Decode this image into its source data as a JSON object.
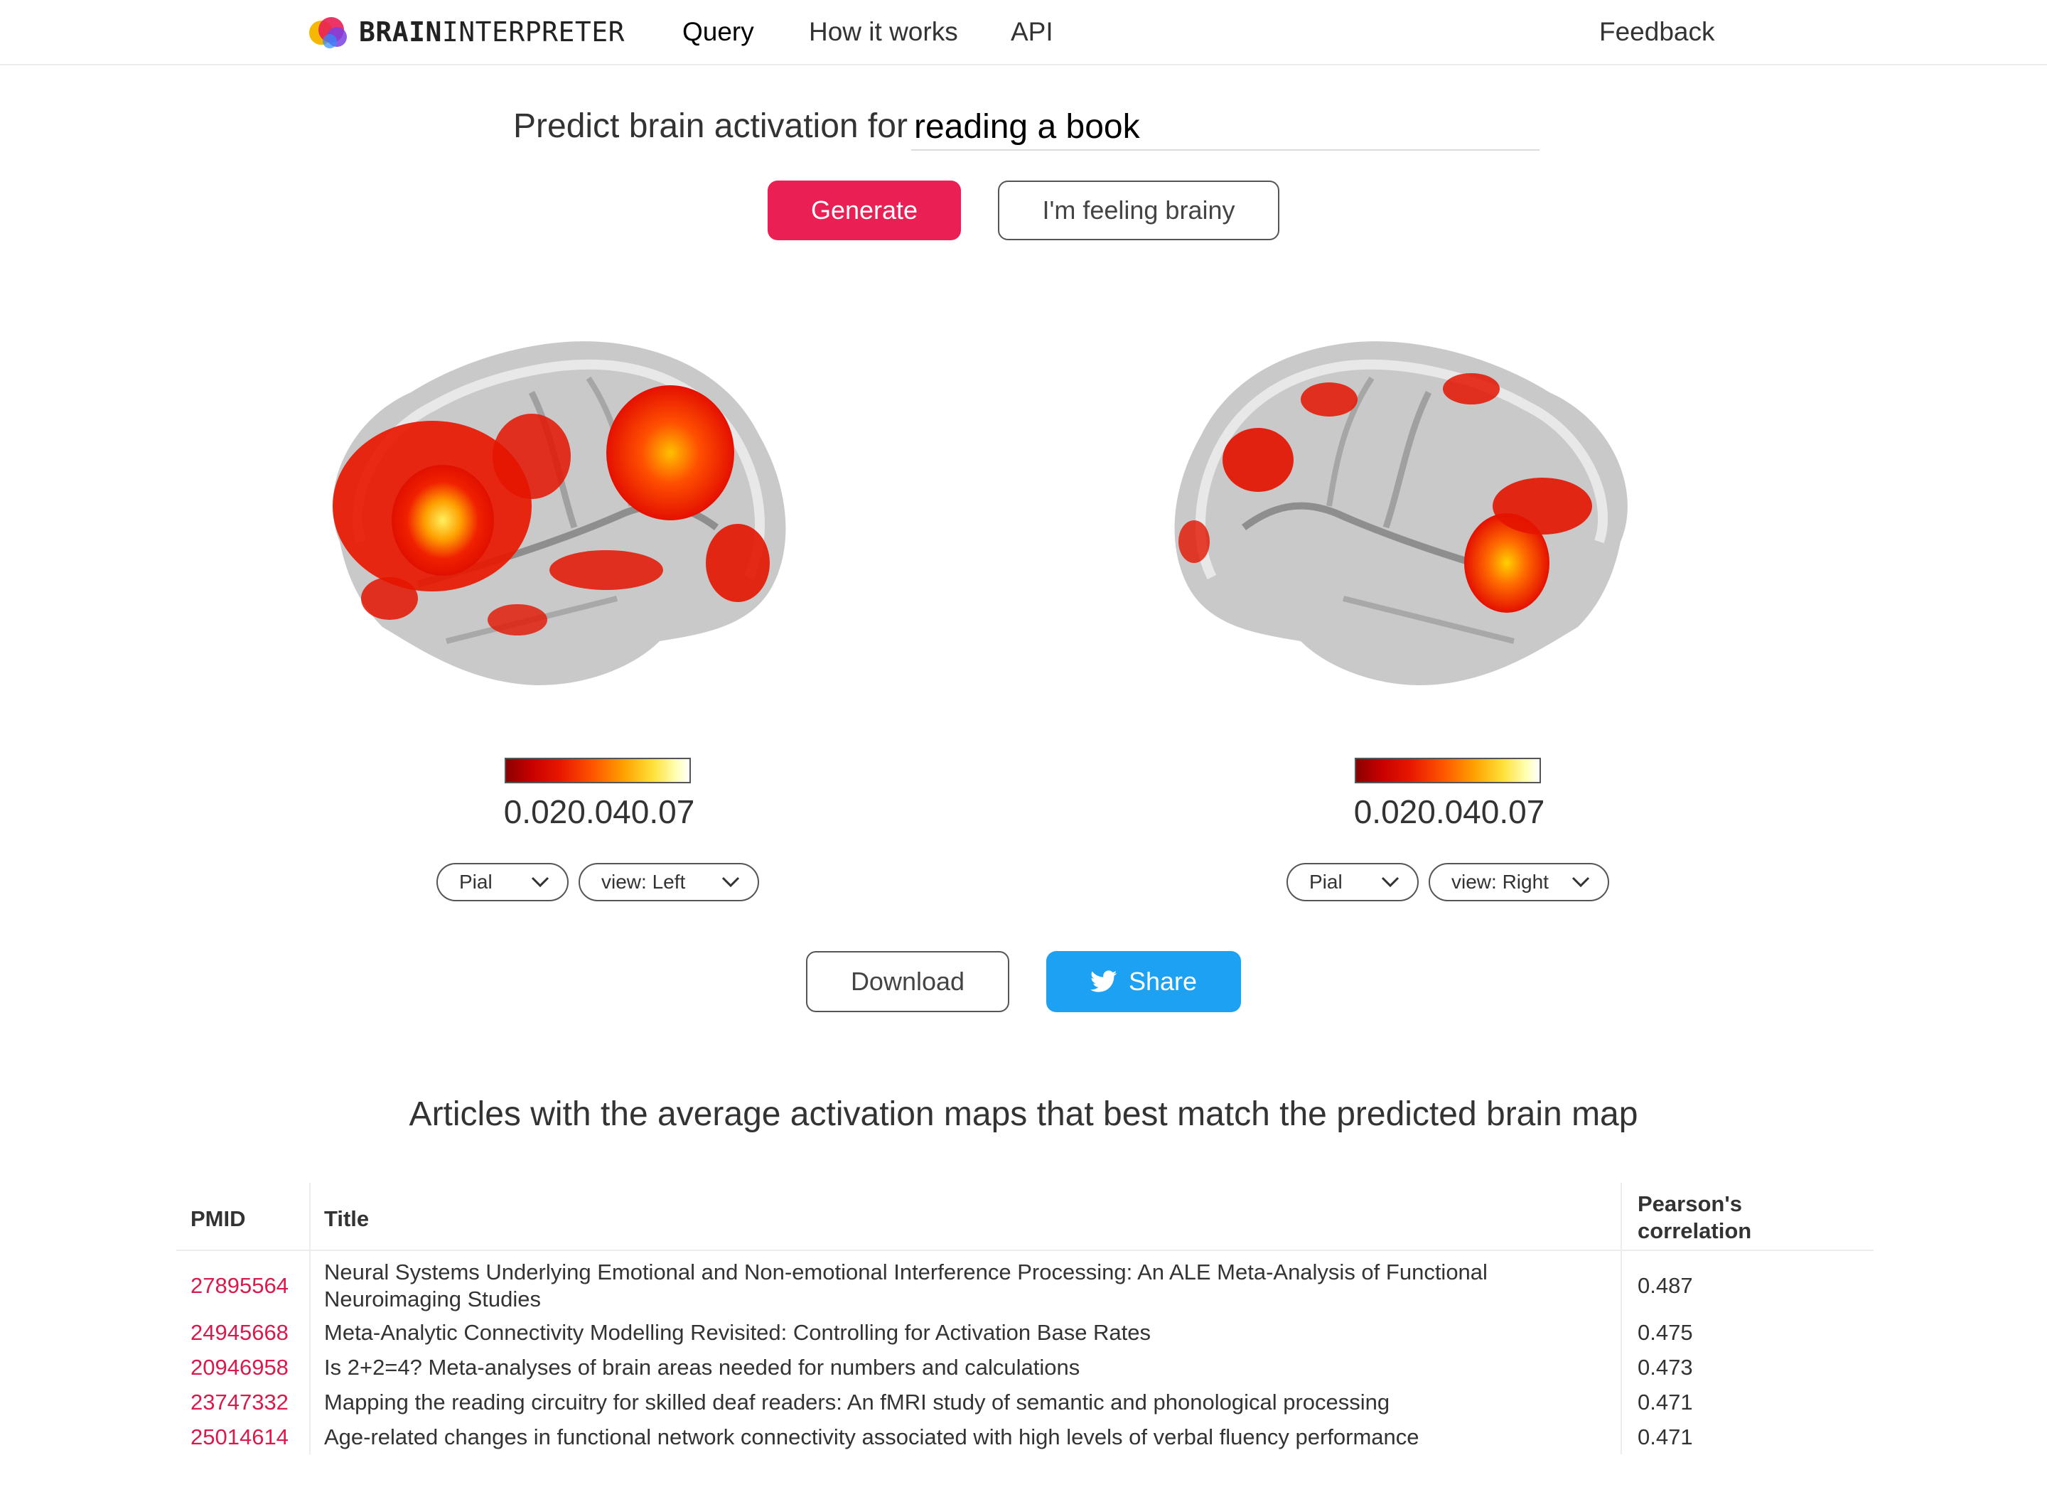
{
  "nav": {
    "brand_bold": "BRAIN",
    "brand_light": "INTERPRETER",
    "links": [
      "Query",
      "How it works",
      "API"
    ],
    "feedback": "Feedback"
  },
  "query": {
    "label": "Predict brain activation for",
    "value": "reading a book",
    "generate_label": "Generate",
    "brainy_label": "I'm feeling brainy"
  },
  "views": [
    {
      "colorbar_ticks": [
        "0.02",
        "0.04",
        "0.07"
      ],
      "surface": "Pial",
      "view": "view: Left"
    },
    {
      "colorbar_ticks": [
        "0.02",
        "0.04",
        "0.07"
      ],
      "surface": "Pial",
      "view": "view: Right"
    }
  ],
  "actions": {
    "download_label": "Download",
    "share_label": "Share"
  },
  "articles": {
    "heading": "Articles with the average activation maps that best match the predicted brain map",
    "columns": [
      "PMID",
      "Title",
      "Pearson's",
      "correlation"
    ],
    "rows": [
      {
        "pmid": "27895564",
        "title": "Neural Systems Underlying Emotional and Non-emotional Interference Processing: An ALE Meta-Analysis of Functional",
        "title2": "Neuroimaging Studies",
        "corr": "0.487"
      },
      {
        "pmid": "24945668",
        "title": "Meta-Analytic Connectivity Modelling Revisited: Controlling for Activation Base Rates",
        "corr": "0.475"
      },
      {
        "pmid": "20946958",
        "title": "Is 2+2=4? Meta-analyses of brain areas needed for numbers and calculations",
        "corr": "0.473"
      },
      {
        "pmid": "23747332",
        "title": "Mapping the reading circuitry for skilled deaf readers: An fMRI study of semantic and phonological processing",
        "corr": "0.471"
      },
      {
        "pmid": "25014614",
        "title": "Age-related changes in functional network connectivity associated with high levels of verbal fluency performance",
        "corr": "0.471"
      }
    ]
  }
}
